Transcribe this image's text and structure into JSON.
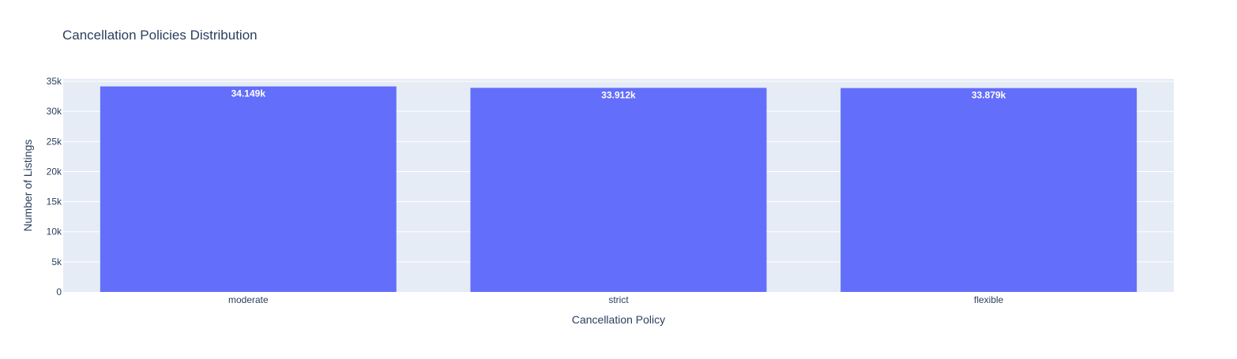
{
  "chart_data": {
    "type": "bar",
    "title": "Cancellation Policies Distribution",
    "xlabel": "Cancellation Policy",
    "ylabel": "Number of Listings",
    "categories": [
      "moderate",
      "strict",
      "flexible"
    ],
    "values": [
      34149,
      33912,
      33879
    ],
    "value_labels": [
      "34.149k",
      "33.912k",
      "33.879k"
    ],
    "ylim": [
      0,
      35400
    ],
    "yticks": [
      0,
      5000,
      10000,
      15000,
      20000,
      25000,
      30000,
      35000
    ],
    "ytick_labels": [
      "0",
      "5k",
      "10k",
      "15k",
      "20k",
      "25k",
      "30k",
      "35k"
    ],
    "grid": true,
    "legend": "none",
    "colors": {
      "bar": "#636efa",
      "plot_background": "#e5ecf6",
      "grid": "#ffffff",
      "text": "#2a3f5f",
      "value_label": "#ffffff"
    }
  }
}
